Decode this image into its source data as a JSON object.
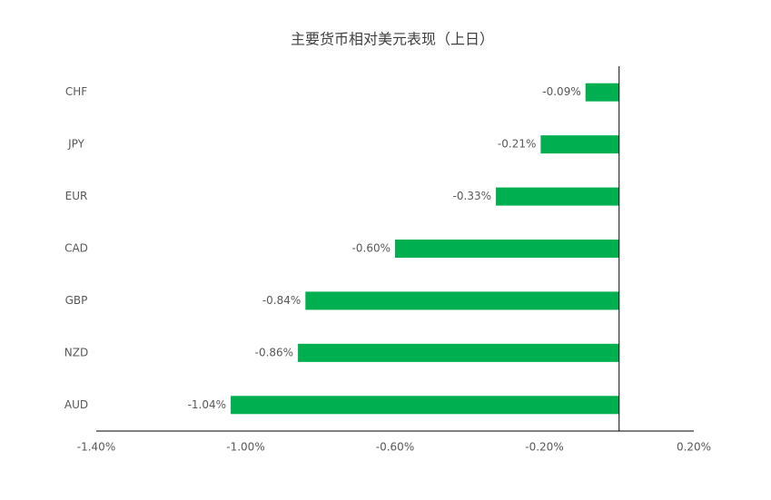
{
  "chart_data": {
    "type": "bar",
    "orientation": "horizontal",
    "title": "主要货币相对美元表现（上日）",
    "categories": [
      "CHF",
      "JPY",
      "EUR",
      "CAD",
      "GBP",
      "NZD",
      "AUD"
    ],
    "values": [
      -0.09,
      -0.21,
      -0.33,
      -0.6,
      -0.84,
      -0.86,
      -1.04
    ],
    "value_labels": [
      "-0.09%",
      "-0.21%",
      "-0.33%",
      "-0.60%",
      "-0.84%",
      "-0.86%",
      "-1.04%"
    ],
    "color": "#00b050",
    "xlim": [
      -1.4,
      0.2
    ],
    "xticks": [
      {
        "value": -1.4,
        "label": "-1.40%"
      },
      {
        "value": -1.0,
        "label": "-1.00%"
      },
      {
        "value": -0.6,
        "label": "-0.60%"
      },
      {
        "value": -0.2,
        "label": "-0.20%"
      },
      {
        "value": 0.2,
        "label": "0.20%"
      }
    ],
    "grid": false
  }
}
